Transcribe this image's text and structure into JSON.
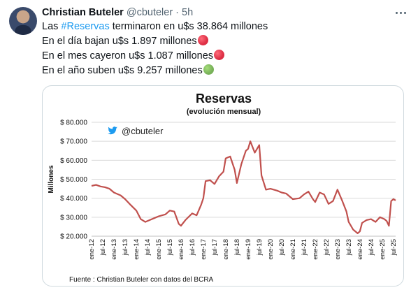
{
  "author": {
    "name": "Christian Buteler",
    "handle": "@cbuteler",
    "separator": "·",
    "time": "5h"
  },
  "tweet": {
    "line1_prefix": "Las ",
    "line1_hashtag": "#Reservas",
    "line1_suffix": " terminaron en u$s 38.864 millones",
    "line2": "En el día bajan u$s 1.897 millones",
    "line3": "En el mes cayeron u$s 1.087 millones",
    "line4": "En el año suben u$s 9.257 millones",
    "emoji_colors": {
      "red": "#dd2e44",
      "green": "#78b159"
    }
  },
  "colors": {
    "accent": "#1d9bf0",
    "line": "#c0504d",
    "text": "#0f1419",
    "muted": "#536471"
  },
  "chart_data": {
    "type": "line",
    "title": "Reservas",
    "subtitle": "(evolución mensual)",
    "watermark": "@cbuteler",
    "ylabel": "Millones",
    "ylim": [
      20000,
      80000
    ],
    "y_ticks": [
      "$ 20.000",
      "$ 30.000",
      "$ 40.000",
      "$ 50.000",
      "$ 60.000",
      "$ 70.000",
      "$ 80.000"
    ],
    "x_ticks": [
      "ene-12",
      "jul-12",
      "ene-13",
      "jul-13",
      "ene-14",
      "jul-14",
      "ene-15",
      "jul-15",
      "ene-16",
      "jul-16",
      "ene-17",
      "jul-17",
      "ene-18",
      "jul-18",
      "ene-19",
      "jul-19",
      "ene-20",
      "jul-20",
      "ene-21",
      "jul-21",
      "ene-22",
      "jul-22",
      "ene-23",
      "jul-23",
      "ene-24",
      "jul-24",
      "ene-25",
      "jul-25"
    ],
    "source": "Fuente : Christian Buteler con datos del BCRA",
    "grid": true,
    "series": [
      {
        "values": [
          [
            2012.0,
            46500
          ],
          [
            2012.2,
            47000
          ],
          [
            2012.4,
            46200
          ],
          [
            2012.6,
            45800
          ],
          [
            2012.8,
            45000
          ],
          [
            2013.0,
            43000
          ],
          [
            2013.3,
            41500
          ],
          [
            2013.5,
            39500
          ],
          [
            2013.7,
            37000
          ],
          [
            2014.0,
            33500
          ],
          [
            2014.2,
            29000
          ],
          [
            2014.4,
            27500
          ],
          [
            2014.6,
            28500
          ],
          [
            2014.8,
            29500
          ],
          [
            2015.0,
            30500
          ],
          [
            2015.3,
            31500
          ],
          [
            2015.5,
            33500
          ],
          [
            2015.7,
            33000
          ],
          [
            2015.9,
            26500
          ],
          [
            2016.0,
            25500
          ],
          [
            2016.2,
            28500
          ],
          [
            2016.5,
            32000
          ],
          [
            2016.7,
            31000
          ],
          [
            2016.9,
            36500
          ],
          [
            2017.0,
            40000
          ],
          [
            2017.1,
            49000
          ],
          [
            2017.3,
            49500
          ],
          [
            2017.5,
            47500
          ],
          [
            2017.7,
            51500
          ],
          [
            2017.9,
            54000
          ],
          [
            2018.0,
            61000
          ],
          [
            2018.2,
            62000
          ],
          [
            2018.4,
            55000
          ],
          [
            2018.5,
            48000
          ],
          [
            2018.7,
            58000
          ],
          [
            2018.9,
            65000
          ],
          [
            2019.0,
            66000
          ],
          [
            2019.1,
            70000
          ],
          [
            2019.3,
            64000
          ],
          [
            2019.5,
            68000
          ],
          [
            2019.6,
            52000
          ],
          [
            2019.8,
            44500
          ],
          [
            2020.0,
            45000
          ],
          [
            2020.3,
            44000
          ],
          [
            2020.5,
            43000
          ],
          [
            2020.7,
            42500
          ],
          [
            2021.0,
            39500
          ],
          [
            2021.3,
            40000
          ],
          [
            2021.5,
            42000
          ],
          [
            2021.7,
            43500
          ],
          [
            2021.9,
            39500
          ],
          [
            2022.0,
            38000
          ],
          [
            2022.2,
            43000
          ],
          [
            2022.4,
            42000
          ],
          [
            2022.6,
            37000
          ],
          [
            2022.8,
            38500
          ],
          [
            2023.0,
            44500
          ],
          [
            2023.2,
            39000
          ],
          [
            2023.4,
            33000
          ],
          [
            2023.5,
            27500
          ],
          [
            2023.7,
            23500
          ],
          [
            2023.9,
            21500
          ],
          [
            2024.0,
            22500
          ],
          [
            2024.1,
            27000
          ],
          [
            2024.3,
            28500
          ],
          [
            2024.5,
            29000
          ],
          [
            2024.7,
            27500
          ],
          [
            2024.9,
            30000
          ],
          [
            2025.1,
            29000
          ],
          [
            2025.2,
            28000
          ],
          [
            2025.3,
            25500
          ],
          [
            2025.4,
            38500
          ],
          [
            2025.5,
            39500
          ],
          [
            2025.6,
            38864
          ]
        ]
      }
    ]
  }
}
